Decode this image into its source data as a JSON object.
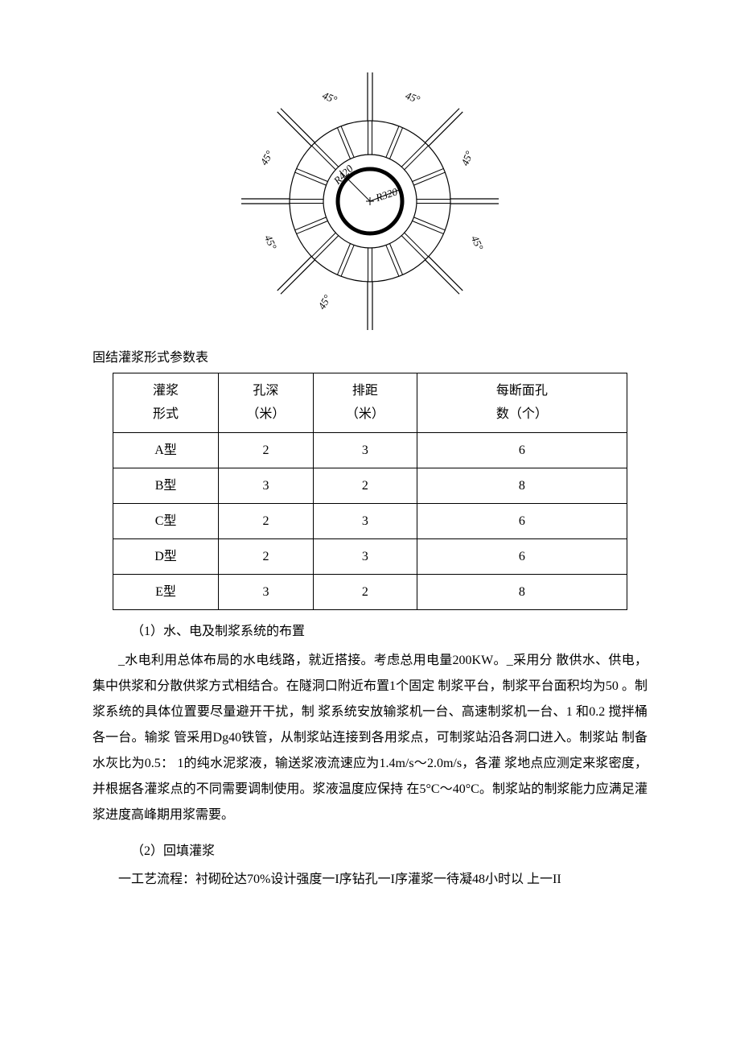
{
  "diagram": {
    "inner_radius_label": "R320",
    "outer_radius_label": "R420",
    "spoke_angle_label": "45°",
    "inner_r": 40,
    "mid_r": 58,
    "outer_r": 100,
    "spoke_outer": 160,
    "spoke_inner": 100,
    "short_tick_outer": 100,
    "short_tick_inner": 58,
    "stroke_color": "#000000",
    "bg_color": "#ffffff",
    "inner_circle_stroke_width": 5,
    "mid_circle_stroke_width": 1.2,
    "outer_circle_stroke_width": 1.2,
    "spoke_stroke_width": 1.2,
    "label_fontsize": 13
  },
  "table": {
    "caption": "固结灌浆形式参数表",
    "columns": [
      "灌浆\n形式",
      "孔深\n（米）",
      "排距\n（米）",
      "每断面孔\n数（个）"
    ],
    "rows": [
      [
        "A型",
        "2",
        "3",
        "6"
      ],
      [
        "B型",
        "3",
        "2",
        "8"
      ],
      [
        "C型",
        "2",
        "3",
        "6"
      ],
      [
        "D型",
        "2",
        "3",
        "6"
      ],
      [
        "E型",
        "3",
        "2",
        "8"
      ]
    ]
  },
  "text": {
    "sub1": "（1）水、电及制浆系统的布置",
    "para1": "_水电利用总体布局的水电线路，就近搭接。考虑总用电量200KW。_采用分 散供水、供电，集中供浆和分散供浆方式相结合。在隧洞口附近布置1个固定 制浆平台，制浆平台面积均为50 。制浆系统的具体位置要尽量避开干扰，制 浆系统安放输浆机一台、高速制浆机一台、1 和0.2 搅拌桶各一台。输浆 管采用Dg40铁管，从制浆站连接到各用浆点，可制浆站沿各洞口进入。制浆站 制备水灰比为0.5： 1的纯水泥浆液，输送浆液流速应为1.4m/s～2.0m/s，各灌 浆地点应测定来浆密度，并根据各灌浆点的不同需要调制使用。浆液温度应保持 在5°C～40°C。制浆站的制浆能力应满足灌浆进度高峰期用浆需要。",
    "sub2": "（2）回填灌浆",
    "para2": "一工艺流程：衬砌砼达70%设计强度一I序钻孔一I序灌浆一待凝48小时以 上一II"
  }
}
